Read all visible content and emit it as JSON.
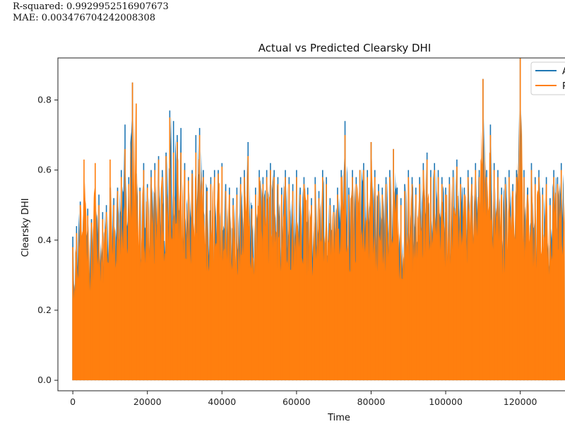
{
  "metrics": {
    "r_squared": "R-squared: 0.9929952516907673",
    "mae": "MAE: 0.003476704242008308"
  },
  "chart_data": {
    "type": "line",
    "title": "Actual vs Predicted Clearsky DHI",
    "xlabel": "Time",
    "ylabel": "Clearsky DHI",
    "xlim": [
      -4000,
      132000
    ],
    "ylim": [
      -0.03,
      0.92
    ],
    "x_ticks": [
      0,
      20000,
      40000,
      60000,
      80000,
      100000,
      120000
    ],
    "x_tick_labels": [
      "0",
      "20000",
      "40000",
      "60000",
      "80000",
      "100000",
      "120000"
    ],
    "y_ticks": [
      0.0,
      0.2,
      0.4,
      0.6,
      0.8
    ],
    "y_tick_labels": [
      "0.0",
      "0.2",
      "0.4",
      "0.6",
      "0.8"
    ],
    "legend_position": "top-right",
    "series": [
      {
        "name": "A",
        "color": "#1f77b4",
        "peaks": [
          [
            0,
            0.41
          ],
          [
            1000,
            0.44
          ],
          [
            2000,
            0.51
          ],
          [
            3000,
            0.52
          ],
          [
            4000,
            0.49
          ],
          [
            5000,
            0.46
          ],
          [
            6000,
            0.5
          ],
          [
            7000,
            0.53
          ],
          [
            8000,
            0.48
          ],
          [
            9000,
            0.5
          ],
          [
            10000,
            0.55
          ],
          [
            11000,
            0.52
          ],
          [
            12000,
            0.55
          ],
          [
            13000,
            0.6
          ],
          [
            14000,
            0.73
          ],
          [
            15000,
            0.58
          ],
          [
            16000,
            0.85
          ],
          [
            17000,
            0.59
          ],
          [
            18000,
            0.55
          ],
          [
            19000,
            0.62
          ],
          [
            20000,
            0.56
          ],
          [
            21000,
            0.6
          ],
          [
            22000,
            0.62
          ],
          [
            23000,
            0.64
          ],
          [
            24000,
            0.6
          ],
          [
            25000,
            0.65
          ],
          [
            26000,
            0.77
          ],
          [
            27000,
            0.74
          ],
          [
            28000,
            0.7
          ],
          [
            29000,
            0.72
          ],
          [
            30000,
            0.62
          ],
          [
            31000,
            0.58
          ],
          [
            32000,
            0.6
          ],
          [
            33000,
            0.7
          ],
          [
            34000,
            0.72
          ],
          [
            35000,
            0.6
          ],
          [
            36000,
            0.55
          ],
          [
            37000,
            0.58
          ],
          [
            38000,
            0.6
          ],
          [
            39000,
            0.6
          ],
          [
            40000,
            0.62
          ],
          [
            41000,
            0.56
          ],
          [
            42000,
            0.55
          ],
          [
            43000,
            0.52
          ],
          [
            44000,
            0.55
          ],
          [
            45000,
            0.58
          ],
          [
            46000,
            0.6
          ],
          [
            47000,
            0.68
          ],
          [
            48000,
            0.5
          ],
          [
            49000,
            0.55
          ],
          [
            50000,
            0.6
          ],
          [
            51000,
            0.58
          ],
          [
            52000,
            0.6
          ],
          [
            53000,
            0.62
          ],
          [
            54000,
            0.6
          ],
          [
            55000,
            0.58
          ],
          [
            56000,
            0.55
          ],
          [
            57000,
            0.6
          ],
          [
            58000,
            0.58
          ],
          [
            59000,
            0.56
          ],
          [
            60000,
            0.6
          ],
          [
            61000,
            0.55
          ],
          [
            62000,
            0.58
          ],
          [
            63000,
            0.55
          ],
          [
            64000,
            0.52
          ],
          [
            65000,
            0.58
          ],
          [
            66000,
            0.54
          ],
          [
            67000,
            0.6
          ],
          [
            68000,
            0.58
          ],
          [
            69000,
            0.52
          ],
          [
            70000,
            0.5
          ],
          [
            71000,
            0.55
          ],
          [
            72000,
            0.6
          ],
          [
            73000,
            0.74
          ],
          [
            74000,
            0.55
          ],
          [
            75000,
            0.6
          ],
          [
            76000,
            0.58
          ],
          [
            77000,
            0.6
          ],
          [
            78000,
            0.62
          ],
          [
            79000,
            0.6
          ],
          [
            80000,
            0.68
          ],
          [
            81000,
            0.6
          ],
          [
            82000,
            0.56
          ],
          [
            83000,
            0.55
          ],
          [
            84000,
            0.58
          ],
          [
            85000,
            0.6
          ],
          [
            86000,
            0.66
          ],
          [
            87000,
            0.55
          ],
          [
            88000,
            0.52
          ],
          [
            89000,
            0.56
          ],
          [
            90000,
            0.6
          ],
          [
            91000,
            0.58
          ],
          [
            92000,
            0.55
          ],
          [
            93000,
            0.58
          ],
          [
            94000,
            0.62
          ],
          [
            95000,
            0.65
          ],
          [
            96000,
            0.6
          ],
          [
            97000,
            0.62
          ],
          [
            98000,
            0.6
          ],
          [
            99000,
            0.58
          ],
          [
            100000,
            0.55
          ],
          [
            101000,
            0.58
          ],
          [
            102000,
            0.6
          ],
          [
            103000,
            0.63
          ],
          [
            104000,
            0.58
          ],
          [
            105000,
            0.55
          ],
          [
            106000,
            0.6
          ],
          [
            107000,
            0.58
          ],
          [
            108000,
            0.62
          ],
          [
            109000,
            0.6
          ],
          [
            110000,
            0.86
          ],
          [
            111000,
            0.6
          ],
          [
            112000,
            0.73
          ],
          [
            113000,
            0.62
          ],
          [
            114000,
            0.6
          ],
          [
            115000,
            0.55
          ],
          [
            116000,
            0.58
          ],
          [
            117000,
            0.6
          ],
          [
            118000,
            0.56
          ],
          [
            119000,
            0.6
          ],
          [
            120000,
            0.92
          ],
          [
            121000,
            0.6
          ],
          [
            122000,
            0.55
          ],
          [
            123000,
            0.62
          ],
          [
            124000,
            0.58
          ],
          [
            125000,
            0.6
          ],
          [
            126000,
            0.55
          ],
          [
            127000,
            0.58
          ],
          [
            128000,
            0.52
          ],
          [
            129000,
            0.6
          ],
          [
            130000,
            0.58
          ],
          [
            131000,
            0.62
          ]
        ]
      },
      {
        "name": "P",
        "color": "#ff7f0e",
        "peaks": [
          [
            0,
            0.38
          ],
          [
            1000,
            0.42
          ],
          [
            2000,
            0.5
          ],
          [
            3000,
            0.63
          ],
          [
            4000,
            0.47
          ],
          [
            5000,
            0.45
          ],
          [
            6000,
            0.62
          ],
          [
            7000,
            0.5
          ],
          [
            8000,
            0.46
          ],
          [
            9000,
            0.48
          ],
          [
            10000,
            0.63
          ],
          [
            11000,
            0.5
          ],
          [
            12000,
            0.54
          ],
          [
            13000,
            0.58
          ],
          [
            14000,
            0.66
          ],
          [
            15000,
            0.56
          ],
          [
            16000,
            0.85
          ],
          [
            17000,
            0.79
          ],
          [
            18000,
            0.54
          ],
          [
            19000,
            0.6
          ],
          [
            20000,
            0.55
          ],
          [
            21000,
            0.58
          ],
          [
            22000,
            0.6
          ],
          [
            23000,
            0.63
          ],
          [
            24000,
            0.58
          ],
          [
            25000,
            0.64
          ],
          [
            26000,
            0.75
          ],
          [
            27000,
            0.65
          ],
          [
            28000,
            0.68
          ],
          [
            29000,
            0.65
          ],
          [
            30000,
            0.6
          ],
          [
            31000,
            0.57
          ],
          [
            32000,
            0.59
          ],
          [
            33000,
            0.65
          ],
          [
            34000,
            0.7
          ],
          [
            35000,
            0.58
          ],
          [
            36000,
            0.54
          ],
          [
            37000,
            0.56
          ],
          [
            38000,
            0.58
          ],
          [
            39000,
            0.59
          ],
          [
            40000,
            0.61
          ],
          [
            41000,
            0.54
          ],
          [
            42000,
            0.53
          ],
          [
            43000,
            0.5
          ],
          [
            44000,
            0.53
          ],
          [
            45000,
            0.56
          ],
          [
            46000,
            0.58
          ],
          [
            47000,
            0.64
          ],
          [
            48000,
            0.49
          ],
          [
            49000,
            0.53
          ],
          [
            50000,
            0.58
          ],
          [
            51000,
            0.56
          ],
          [
            52000,
            0.58
          ],
          [
            53000,
            0.6
          ],
          [
            54000,
            0.58
          ],
          [
            55000,
            0.56
          ],
          [
            56000,
            0.53
          ],
          [
            57000,
            0.58
          ],
          [
            58000,
            0.56
          ],
          [
            59000,
            0.54
          ],
          [
            60000,
            0.58
          ],
          [
            61000,
            0.53
          ],
          [
            62000,
            0.56
          ],
          [
            63000,
            0.53
          ],
          [
            64000,
            0.5
          ],
          [
            65000,
            0.56
          ],
          [
            66000,
            0.52
          ],
          [
            67000,
            0.58
          ],
          [
            68000,
            0.56
          ],
          [
            69000,
            0.5
          ],
          [
            70000,
            0.48
          ],
          [
            71000,
            0.53
          ],
          [
            72000,
            0.58
          ],
          [
            73000,
            0.7
          ],
          [
            74000,
            0.53
          ],
          [
            75000,
            0.58
          ],
          [
            76000,
            0.56
          ],
          [
            77000,
            0.6
          ],
          [
            78000,
            0.6
          ],
          [
            79000,
            0.58
          ],
          [
            80000,
            0.68
          ],
          [
            81000,
            0.58
          ],
          [
            82000,
            0.54
          ],
          [
            83000,
            0.53
          ],
          [
            84000,
            0.56
          ],
          [
            85000,
            0.58
          ],
          [
            86000,
            0.66
          ],
          [
            87000,
            0.53
          ],
          [
            88000,
            0.5
          ],
          [
            89000,
            0.54
          ],
          [
            90000,
            0.58
          ],
          [
            91000,
            0.56
          ],
          [
            92000,
            0.53
          ],
          [
            93000,
            0.56
          ],
          [
            94000,
            0.6
          ],
          [
            95000,
            0.63
          ],
          [
            96000,
            0.58
          ],
          [
            97000,
            0.6
          ],
          [
            98000,
            0.58
          ],
          [
            99000,
            0.56
          ],
          [
            100000,
            0.53
          ],
          [
            101000,
            0.56
          ],
          [
            102000,
            0.58
          ],
          [
            103000,
            0.61
          ],
          [
            104000,
            0.56
          ],
          [
            105000,
            0.53
          ],
          [
            106000,
            0.58
          ],
          [
            107000,
            0.56
          ],
          [
            108000,
            0.6
          ],
          [
            109000,
            0.58
          ],
          [
            110000,
            0.86
          ],
          [
            111000,
            0.58
          ],
          [
            112000,
            0.7
          ],
          [
            113000,
            0.6
          ],
          [
            114000,
            0.58
          ],
          [
            115000,
            0.53
          ],
          [
            116000,
            0.56
          ],
          [
            117000,
            0.58
          ],
          [
            118000,
            0.54
          ],
          [
            119000,
            0.58
          ],
          [
            120000,
            0.92
          ],
          [
            121000,
            0.58
          ],
          [
            122000,
            0.53
          ],
          [
            123000,
            0.6
          ],
          [
            124000,
            0.56
          ],
          [
            125000,
            0.58
          ],
          [
            126000,
            0.53
          ],
          [
            127000,
            0.56
          ],
          [
            128000,
            0.5
          ],
          [
            129000,
            0.58
          ],
          [
            130000,
            0.56
          ],
          [
            131000,
            0.6
          ]
        ]
      }
    ]
  }
}
